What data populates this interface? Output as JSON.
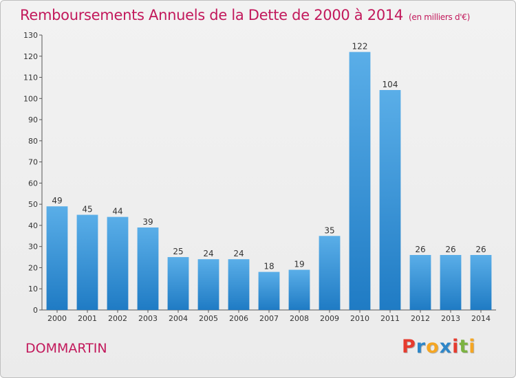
{
  "title": "Remboursements Annuels de la Dette de 2000 à 2014",
  "unit": "(en milliers d'€)",
  "commune": "DOMMARTIN",
  "logo": {
    "letters": [
      "P",
      "r",
      "o",
      "x",
      "i",
      "t",
      "i"
    ],
    "colors": [
      "#e63b2e",
      "#2e86c8",
      "#f5a623",
      "#2e86c8",
      "#e63b2e",
      "#7cb342",
      "#f5a623"
    ]
  },
  "colors": {
    "bar_top": "#5aaee8",
    "bar_bottom": "#1f7bc4",
    "title": "#c2185b"
  },
  "chart_data": {
    "type": "bar",
    "categories": [
      "2000",
      "2001",
      "2002",
      "2003",
      "2004",
      "2005",
      "2006",
      "2007",
      "2008",
      "2009",
      "2010",
      "2011",
      "2012",
      "2013",
      "2014"
    ],
    "values": [
      49,
      45,
      44,
      39,
      25,
      24,
      24,
      18,
      19,
      35,
      122,
      104,
      26,
      26,
      26
    ],
    "ylim": [
      0,
      130
    ],
    "yticks": [
      0,
      10,
      20,
      30,
      40,
      50,
      60,
      70,
      80,
      90,
      100,
      110,
      120,
      130
    ],
    "grid": false,
    "xlabel": "",
    "ylabel": ""
  }
}
